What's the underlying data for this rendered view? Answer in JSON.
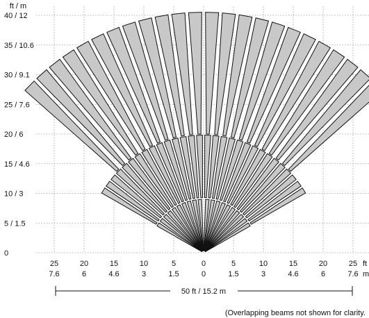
{
  "unit_label": "ft / m",
  "x_unit_label_ft": "ft",
  "x_unit_label_m": "m",
  "y_ticks": [
    {
      "ft": 0,
      "label": "0"
    },
    {
      "ft": 5,
      "label": "5 / 1.5"
    },
    {
      "ft": 10,
      "label": "10 / 3"
    },
    {
      "ft": 15,
      "label": "15 / 4.6"
    },
    {
      "ft": 20,
      "label": "20 / 6"
    },
    {
      "ft": 25,
      "label": "25 / 7.6"
    },
    {
      "ft": 30,
      "label": "30 / 9.1"
    },
    {
      "ft": 35,
      "label": "35 / 10.6"
    },
    {
      "ft": 40,
      "label": "40 / 12"
    }
  ],
  "x_ticks": [
    {
      "ft": -25,
      "top": "25",
      "bottom": "7.6"
    },
    {
      "ft": -20,
      "top": "20",
      "bottom": "6"
    },
    {
      "ft": -15,
      "top": "15",
      "bottom": "4.6"
    },
    {
      "ft": -10,
      "top": "10",
      "bottom": "3"
    },
    {
      "ft": -5,
      "top": "5",
      "bottom": "1.5"
    },
    {
      "ft": 0,
      "top": "0",
      "bottom": "0"
    },
    {
      "ft": 5,
      "top": "5",
      "bottom": "1.5"
    },
    {
      "ft": 10,
      "top": "10",
      "bottom": "3"
    },
    {
      "ft": 15,
      "top": "15",
      "bottom": "4.6"
    },
    {
      "ft": 20,
      "top": "20",
      "bottom": "6"
    },
    {
      "ft": 25,
      "top": "25",
      "bottom": "7.6"
    }
  ],
  "grid_x_ft": [
    -25,
    -20,
    -15,
    -10,
    -5,
    0,
    5,
    10,
    15,
    20,
    25,
    30
  ],
  "grid_y_ft": [
    0,
    5,
    10,
    15,
    20,
    25,
    30,
    35,
    40
  ],
  "width_dimension_label": "50 ft / 15.2 m",
  "footnote": "(Overlapping beams not shown for clarity.",
  "pattern": {
    "long_beam_angles_deg": [
      -46,
      -42,
      -38,
      -34,
      -30,
      -26,
      -22,
      -18,
      -14,
      -10,
      -6,
      -2,
      2,
      6,
      10,
      14,
      18,
      22,
      26,
      30,
      34,
      38,
      42,
      46
    ],
    "long_beam_reach_ft": 40.5,
    "mid_beam_angles_deg": [
      -58,
      -54,
      -50,
      -46,
      -42,
      -38,
      -34,
      -30,
      -26,
      -22,
      -18,
      -14,
      -10,
      -6,
      -2,
      2,
      6,
      10,
      14,
      18,
      22,
      26,
      30,
      34,
      38,
      42,
      46,
      50,
      54,
      58
    ],
    "mid_beam_reach_ft": 19.8,
    "short_beam_angles_deg": [
      -58,
      -52,
      -46,
      -40,
      -34,
      -28,
      -22,
      -16,
      -10,
      -4,
      4,
      10,
      16,
      22,
      28,
      34,
      40,
      46,
      52,
      58
    ],
    "short_beam_reach_ft": 9.0,
    "colors": {
      "zone_fill": "#c8c8c8",
      "zone_outline": "#111111",
      "grid": "#9a9a9a",
      "background": "#ffffff"
    }
  }
}
